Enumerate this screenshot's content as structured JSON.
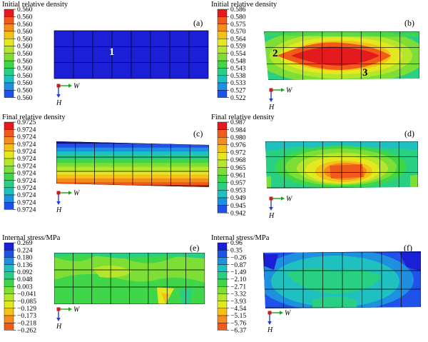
{
  "panels": [
    {
      "id": "a",
      "label": "(a)",
      "title": "Initial relative density",
      "legend": {
        "ticks": [
          "0.560",
          "0.560",
          "0.560",
          "0.560",
          "0.560",
          "0.560",
          "0.560",
          "0.560",
          "0.560",
          "0.560",
          "0.560",
          "0.560",
          "0.560"
        ],
        "colors": [
          "#e41a1c",
          "#f05a1a",
          "#f58c1e",
          "#f4c216",
          "#e4e81e",
          "#b6e62b",
          "#7ddf36",
          "#3fd64a",
          "#29cf83",
          "#1fc0c0",
          "#1f8fe0",
          "#1f52e8",
          "#1b1fd6"
        ]
      },
      "marker": "1",
      "axis": {
        "w": "W",
        "h": "H"
      }
    },
    {
      "id": "b",
      "label": "(b)",
      "title": "Initial relative density",
      "legend": {
        "ticks": [
          "0.586",
          "0.580",
          "0.575",
          "0.570",
          "0.564",
          "0.559",
          "0.554",
          "0.548",
          "0.543",
          "0.538",
          "0.533",
          "0.527",
          "0.522"
        ],
        "colors": [
          "#e41a1c",
          "#f05a1a",
          "#f58c1e",
          "#f4c216",
          "#e4e81e",
          "#b6e62b",
          "#7ddf36",
          "#3fd64a",
          "#29cf83",
          "#1fc0c0",
          "#1f8fe0",
          "#1f52e8",
          "#1b1fd6"
        ]
      },
      "markers": [
        "2",
        "3"
      ],
      "axis": {
        "w": "W",
        "h": "H"
      }
    },
    {
      "id": "c",
      "label": "(c)",
      "title": "Final relative density",
      "legend": {
        "ticks": [
          "0.9725",
          "0.9724",
          "0.9724",
          "0.9724",
          "0.9724",
          "0.9724",
          "0.9724",
          "0.9724",
          "0.9724",
          "0.9724",
          "0.9724",
          "0.9724",
          "0.9724"
        ],
        "colors": [
          "#e41a1c",
          "#f05a1a",
          "#f58c1e",
          "#f4c216",
          "#e4e81e",
          "#b6e62b",
          "#7ddf36",
          "#3fd64a",
          "#29cf83",
          "#1fc0c0",
          "#1f8fe0",
          "#1f52e8",
          "#1b1fd6"
        ]
      },
      "axis": {
        "w": "W",
        "h": "H"
      }
    },
    {
      "id": "d",
      "label": "(d)",
      "title": "Final relative density",
      "legend": {
        "ticks": [
          "0.987",
          "0.984",
          "0.980",
          "0.976",
          "0.972",
          "0.968",
          "0.965",
          "0.961",
          "0.957",
          "0.953",
          "0.949",
          "0.945",
          "0.942"
        ],
        "colors": [
          "#e41a1c",
          "#f05a1a",
          "#f58c1e",
          "#f4c216",
          "#e4e81e",
          "#b6e62b",
          "#7ddf36",
          "#3fd64a",
          "#29cf83",
          "#1fc0c0",
          "#1f8fe0",
          "#1f52e8",
          "#1b1fd6"
        ]
      },
      "axis": {
        "w": "W",
        "h": "H"
      }
    },
    {
      "id": "e",
      "label": "(e)",
      "title": "Internal stress/MPa",
      "legend": {
        "ticks": [
          "0.269",
          "0.224",
          "0.180",
          "0.136",
          "0.092",
          "0.048",
          "0.003",
          "−0.041",
          "−0.085",
          "−0.129",
          "−0.173",
          "−0.218",
          "−0.262"
        ],
        "colors": [
          "#1b1fd6",
          "#1f52e8",
          "#1f8fe0",
          "#1fc0c0",
          "#29cf83",
          "#3fd64a",
          "#7ddf36",
          "#b6e62b",
          "#e4e81e",
          "#f4c216",
          "#f58c1e",
          "#f05a1a",
          "#e41a1c"
        ]
      },
      "axis": {
        "w": "W",
        "h": "H"
      }
    },
    {
      "id": "f",
      "label": "(f)",
      "title": "Internal stress/MPa",
      "legend": {
        "ticks": [
          "0.96",
          "0.35",
          "−0.26",
          "−0.87",
          "−1.49",
          "−2.10",
          "−2.71",
          "−3.32",
          "−3.93",
          "−4.54",
          "−5.15",
          "−5.76",
          "−6.37"
        ],
        "colors": [
          "#1b1fd6",
          "#1f52e8",
          "#1f8fe0",
          "#1fc0c0",
          "#29cf83",
          "#3fd64a",
          "#7ddf36",
          "#b6e62b",
          "#e4e81e",
          "#f4c216",
          "#f58c1e",
          "#f05a1a",
          "#e41a1c"
        ]
      },
      "axis": {
        "w": "W",
        "h": "H"
      }
    }
  ]
}
